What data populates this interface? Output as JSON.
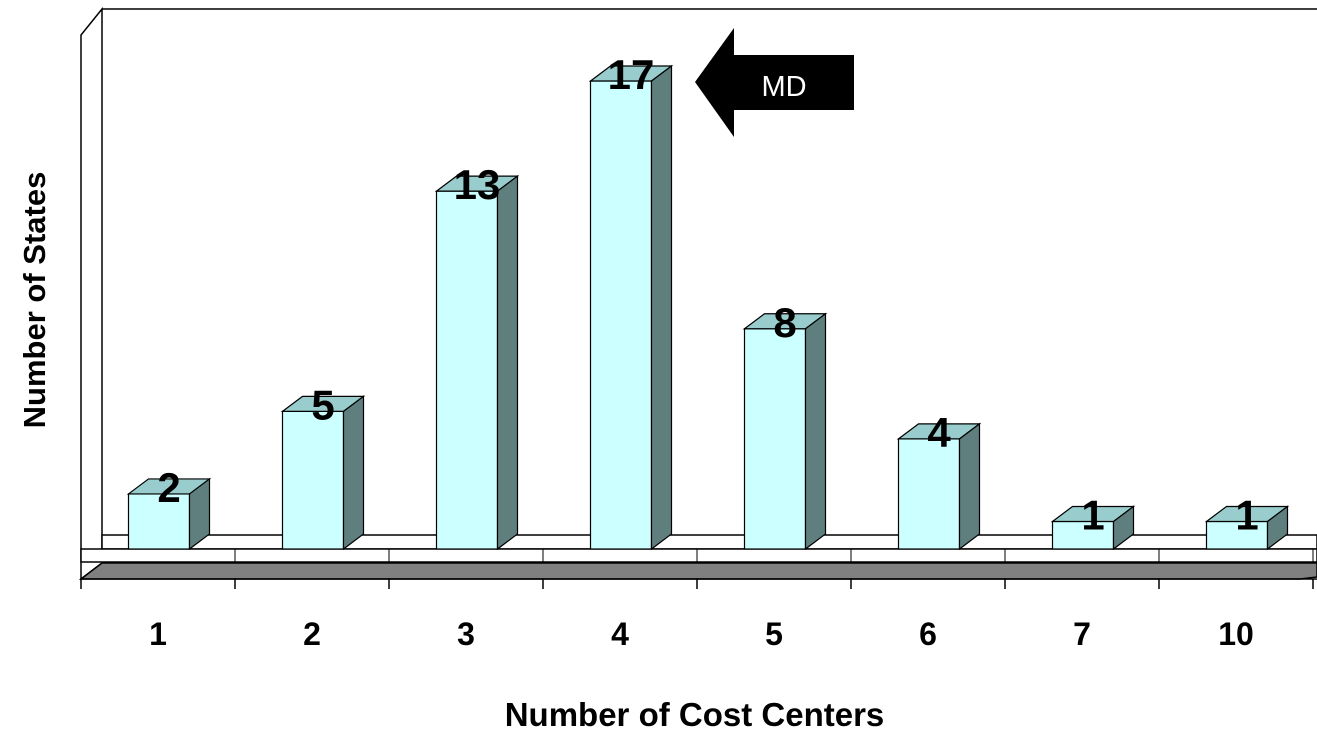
{
  "chart_data": {
    "type": "bar",
    "categories": [
      "1",
      "2",
      "3",
      "4",
      "5",
      "6",
      "7",
      "10"
    ],
    "values": [
      2,
      5,
      13,
      17,
      8,
      4,
      1,
      1
    ],
    "xlabel": "Number of Cost Centers",
    "ylabel": "Number of States",
    "ylim": [
      0,
      17
    ],
    "grid": false,
    "legend": "none",
    "three_d": true,
    "annotation": {
      "text": "MD",
      "points_to": "4"
    },
    "colors": {
      "bar_front": "#ccffff",
      "bar_top": "#99cccc",
      "bar_side": "#5f7f7f",
      "floor": "#808080",
      "outline": "#000000",
      "arrow": "#000000",
      "arrow_text": "#ffffff"
    }
  }
}
